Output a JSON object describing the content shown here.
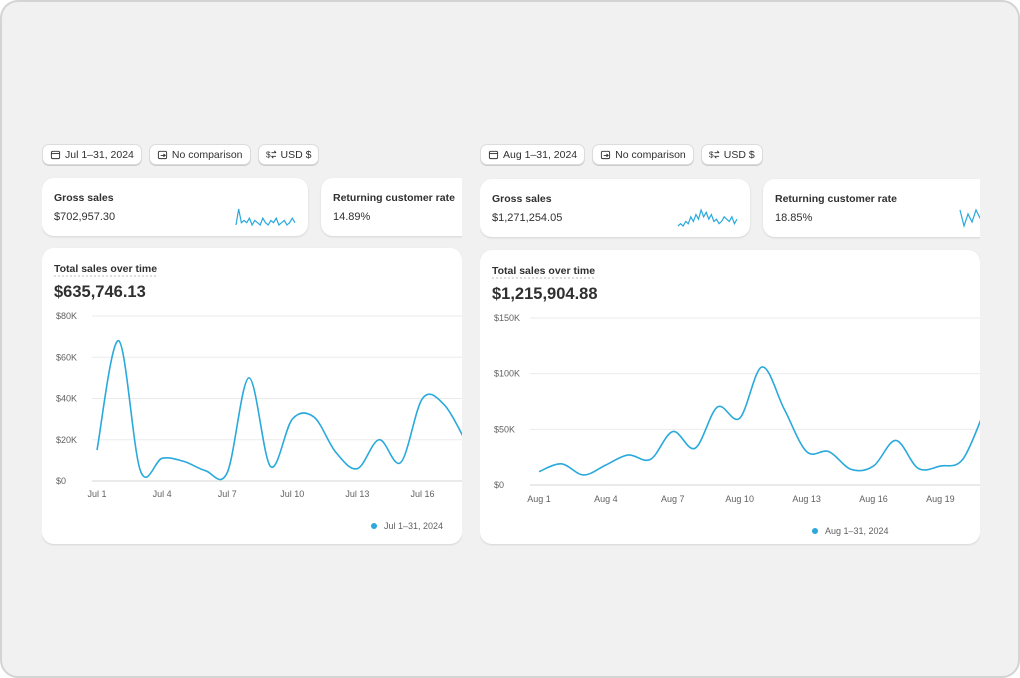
{
  "panels": [
    {
      "date_filter": "Jul 1–31, 2024",
      "comparison": "No comparison",
      "currency": "USD $",
      "cards": [
        {
          "label": "Gross sales",
          "value": "$702,957.30",
          "sparkline": [
            2,
            9,
            3,
            4,
            3,
            5,
            2,
            4,
            3,
            2,
            5,
            3,
            2,
            4,
            3,
            5,
            2,
            3,
            4,
            2,
            3,
            5,
            3
          ]
        },
        {
          "label": "Returning customer rate",
          "value": "14.89%"
        }
      ]
    },
    {
      "date_filter": "Aug 1–31, 2024",
      "comparison": "No comparison",
      "currency": "USD $",
      "cards": [
        {
          "label": "Gross sales",
          "value": "$1,271,254.05",
          "sparkline": [
            2,
            3,
            2,
            4,
            3,
            6,
            4,
            7,
            5,
            9,
            6,
            8,
            5,
            7,
            4,
            5,
            3,
            4,
            6,
            5,
            4,
            6,
            3,
            5
          ]
        },
        {
          "label": "Returning customer rate",
          "value": "18.85%",
          "sparkline": [
            6,
            2,
            5,
            3,
            6,
            4,
            5
          ]
        }
      ]
    }
  ],
  "chart_data": [
    {
      "type": "line",
      "title": "Total sales over time",
      "subtitle": "$635,746.13",
      "categories": [
        "Jul 1",
        null,
        null,
        "Jul 4",
        null,
        null,
        "Jul 7",
        null,
        null,
        "Jul 10",
        null,
        null,
        "Jul 13",
        null,
        null,
        "Jul 16",
        null,
        null
      ],
      "series": [
        {
          "name": "Jul 1–31, 2024",
          "color": "#29a9dc",
          "values": [
            15000,
            68000,
            5000,
            11000,
            9500,
            5000,
            4000,
            50000,
            7000,
            30000,
            31000,
            14000,
            6000,
            20000,
            9000,
            40000,
            37000,
            19000
          ]
        }
      ],
      "ylim": [
        0,
        80000
      ],
      "yticks": [
        {
          "value": 0,
          "label": "$0"
        },
        {
          "value": 20000,
          "label": "$20K"
        },
        {
          "value": 40000,
          "label": "$40K"
        },
        {
          "value": 60000,
          "label": "$60K"
        },
        {
          "value": 80000,
          "label": "$80K"
        }
      ],
      "grid": true
    },
    {
      "type": "line",
      "title": "Total sales over time",
      "subtitle": "$1,215,904.88",
      "categories": [
        "Aug 1",
        null,
        null,
        "Aug 4",
        null,
        null,
        "Aug 7",
        null,
        null,
        "Aug 10",
        null,
        null,
        "Aug 13",
        null,
        null,
        "Aug 16",
        null,
        null,
        "Aug 19",
        null,
        null
      ],
      "series": [
        {
          "name": "Aug 1–31, 2024",
          "color": "#29a9dc",
          "values": [
            12000,
            19000,
            9000,
            18000,
            27000,
            23000,
            48000,
            33000,
            70000,
            60000,
            106000,
            68000,
            30000,
            30000,
            14000,
            17000,
            40000,
            15000,
            17000,
            23000,
            68000
          ]
        }
      ],
      "ylim": [
        0,
        150000
      ],
      "yticks": [
        {
          "value": 0,
          "label": "$0"
        },
        {
          "value": 50000,
          "label": "$50K"
        },
        {
          "value": 100000,
          "label": "$100K"
        },
        {
          "value": 150000,
          "label": "$150K"
        }
      ],
      "grid": true
    }
  ]
}
